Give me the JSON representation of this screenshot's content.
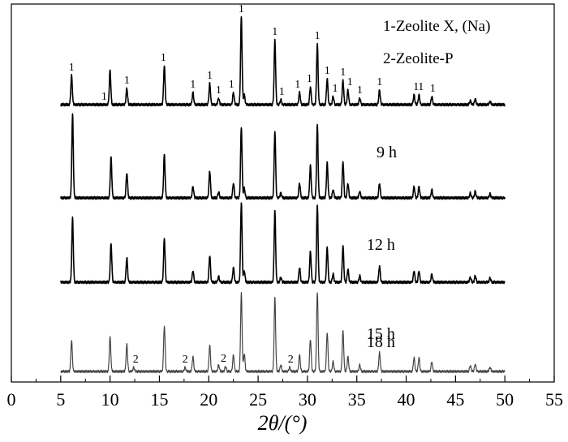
{
  "chart_data": {
    "type": "line",
    "title": "",
    "xlabel": "2θ/(°)",
    "ylabel": "",
    "xlim": [
      0,
      55
    ],
    "xticks": [
      "0",
      "5",
      "10",
      "15",
      "20",
      "25",
      "30",
      "35",
      "40",
      "45",
      "50",
      "55"
    ],
    "grid": false,
    "legend": {
      "placement": "top-right",
      "entries": [
        "1-Zeolite X, (Na)",
        "2-Zeolite-P"
      ]
    },
    "series": [
      {
        "name": "9 h",
        "color": "#000000",
        "peaks": [
          [
            6.1,
            36
          ],
          [
            10.0,
            42
          ],
          [
            11.7,
            20
          ],
          [
            15.5,
            48
          ],
          [
            18.4,
            15
          ],
          [
            20.1,
            26
          ],
          [
            21.0,
            8
          ],
          [
            22.5,
            15
          ],
          [
            23.3,
            108
          ],
          [
            23.6,
            12
          ],
          [
            26.7,
            80
          ],
          [
            27.3,
            6
          ],
          [
            29.2,
            15
          ],
          [
            30.3,
            22
          ],
          [
            31.0,
            75
          ],
          [
            32.0,
            32
          ],
          [
            32.6,
            10
          ],
          [
            33.6,
            30
          ],
          [
            34.1,
            18
          ],
          [
            35.3,
            8
          ],
          [
            37.3,
            18
          ],
          [
            40.8,
            12
          ],
          [
            41.3,
            12
          ],
          [
            42.6,
            10
          ],
          [
            46.5,
            5
          ],
          [
            47.0,
            7
          ],
          [
            48.5,
            4
          ]
        ]
      },
      {
        "name": "12 h",
        "color": "#000000",
        "peaks": [
          [
            6.2,
            103
          ],
          [
            10.1,
            50
          ],
          [
            11.7,
            31
          ],
          [
            15.5,
            53
          ],
          [
            18.4,
            14
          ],
          [
            20.1,
            33
          ],
          [
            21.0,
            7
          ],
          [
            22.5,
            18
          ],
          [
            23.3,
            87
          ],
          [
            23.6,
            12
          ],
          [
            26.7,
            82
          ],
          [
            27.3,
            6
          ],
          [
            29.2,
            18
          ],
          [
            30.3,
            40
          ],
          [
            31.0,
            90
          ],
          [
            32.0,
            43
          ],
          [
            32.6,
            10
          ],
          [
            33.6,
            45
          ],
          [
            34.1,
            18
          ],
          [
            35.3,
            8
          ],
          [
            37.3,
            18
          ],
          [
            40.8,
            14
          ],
          [
            41.3,
            14
          ],
          [
            42.6,
            10
          ],
          [
            46.5,
            6
          ],
          [
            47.0,
            8
          ],
          [
            48.5,
            5
          ]
        ]
      },
      {
        "name": "15 h",
        "color": "#000000",
        "peaks": [
          [
            6.2,
            79
          ],
          [
            10.1,
            48
          ],
          [
            11.7,
            30
          ],
          [
            15.5,
            54
          ],
          [
            18.4,
            14
          ],
          [
            20.1,
            33
          ],
          [
            21.0,
            7
          ],
          [
            22.5,
            18
          ],
          [
            23.3,
            98
          ],
          [
            23.6,
            14
          ],
          [
            26.7,
            88
          ],
          [
            27.3,
            6
          ],
          [
            29.2,
            18
          ],
          [
            30.3,
            38
          ],
          [
            31.0,
            96
          ],
          [
            32.0,
            43
          ],
          [
            32.6,
            10
          ],
          [
            33.6,
            45
          ],
          [
            34.1,
            16
          ],
          [
            35.3,
            8
          ],
          [
            37.3,
            20
          ],
          [
            40.8,
            14
          ],
          [
            41.3,
            14
          ],
          [
            42.6,
            10
          ],
          [
            46.5,
            6
          ],
          [
            47.0,
            8
          ],
          [
            48.5,
            5
          ]
        ]
      },
      {
        "name": "18 h",
        "color": "#444444",
        "peaks": [
          [
            6.1,
            38
          ],
          [
            10.0,
            42
          ],
          [
            11.7,
            33
          ],
          [
            12.4,
            5
          ],
          [
            15.5,
            56
          ],
          [
            17.6,
            5
          ],
          [
            18.4,
            18
          ],
          [
            20.1,
            32
          ],
          [
            21.0,
            8
          ],
          [
            21.7,
            6
          ],
          [
            22.5,
            20
          ],
          [
            23.3,
            96
          ],
          [
            23.6,
            22
          ],
          [
            26.7,
            91
          ],
          [
            27.3,
            8
          ],
          [
            28.2,
            5
          ],
          [
            29.2,
            20
          ],
          [
            30.3,
            40
          ],
          [
            31.0,
            98
          ],
          [
            32.0,
            48
          ],
          [
            32.6,
            12
          ],
          [
            33.6,
            50
          ],
          [
            34.1,
            18
          ],
          [
            35.3,
            8
          ],
          [
            37.3,
            23
          ],
          [
            40.8,
            17
          ],
          [
            41.3,
            17
          ],
          [
            42.6,
            12
          ],
          [
            46.5,
            7
          ],
          [
            47.0,
            9
          ],
          [
            48.5,
            5
          ]
        ]
      }
    ],
    "annotations": [
      {
        "series": "9 h",
        "text": "1",
        "x": [
          6.1,
          9.4,
          11.7,
          15.4,
          18.4,
          20.1,
          21.0,
          22.3,
          23.3,
          26.7,
          27.4,
          29.0,
          30.2,
          31.0,
          32.0,
          32.8,
          33.6,
          34.3,
          35.3,
          37.3,
          41.0,
          41.5,
          42.7
        ]
      },
      {
        "series": "18 h",
        "text": "2",
        "x": [
          12.6,
          17.6,
          21.5,
          28.3
        ]
      }
    ]
  }
}
